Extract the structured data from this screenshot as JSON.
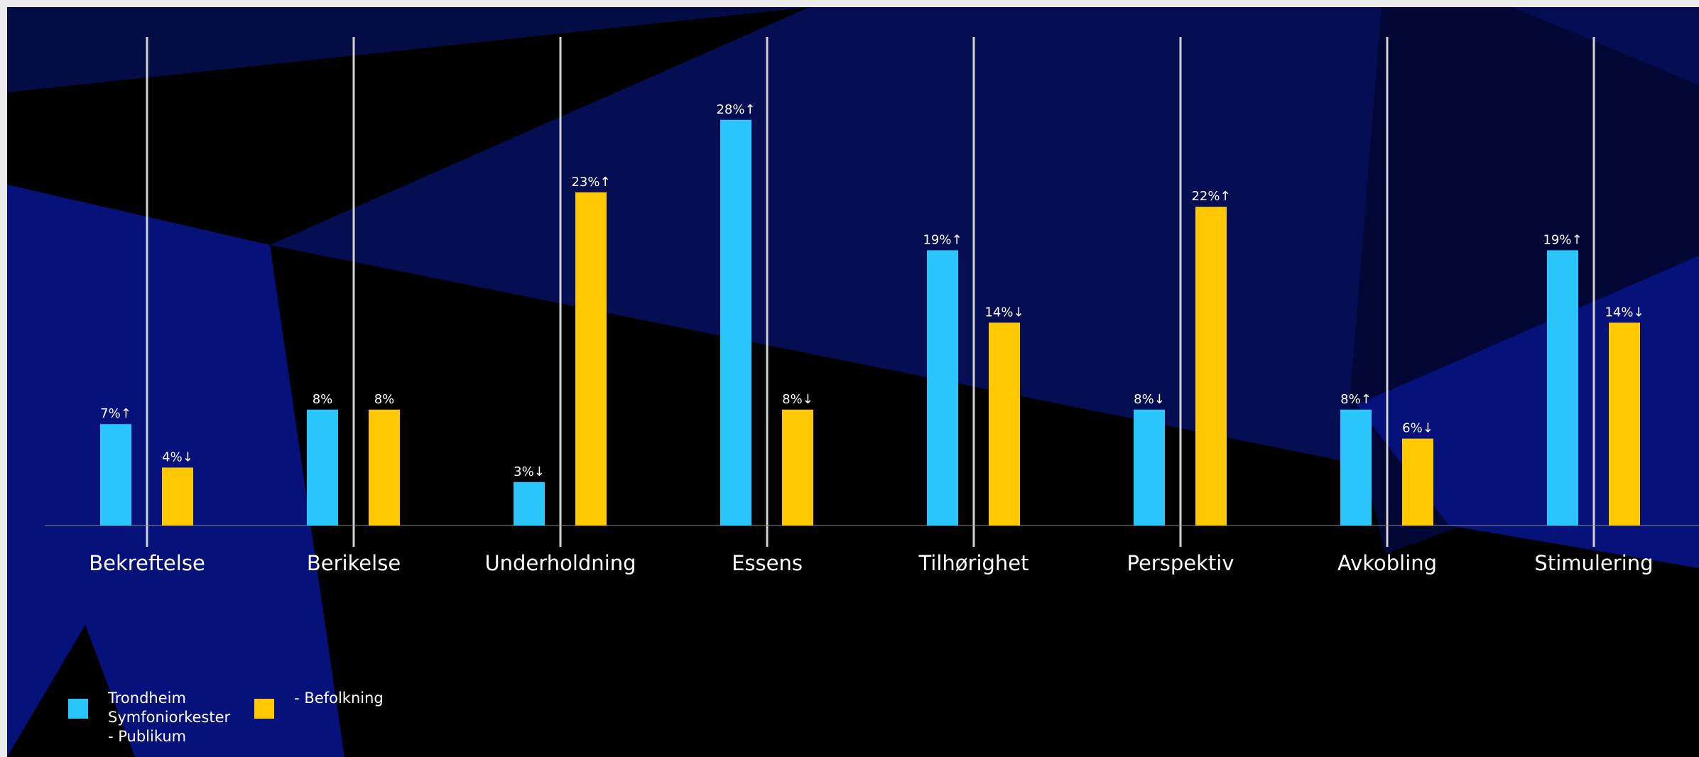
{
  "colors": {
    "series_a": "#29c5fb",
    "series_b": "#ffc800",
    "background": "#000000",
    "shape_dark": "#020a3a",
    "shape_mid": "#06105c",
    "shape_bright": "#08137a",
    "separator": "#d2d2d2",
    "baseline": "#8a8a8a"
  },
  "legend": [
    {
      "label": "Trondheim\nSymfoniorkester\n- Publikum",
      "color": "#29c5fb"
    },
    {
      "label": "- Befolkning",
      "color": "#ffc800"
    }
  ],
  "chart_data": {
    "type": "bar",
    "title": "",
    "xlabel": "",
    "ylabel": "",
    "ylim": [
      0,
      30
    ],
    "grid": false,
    "legend_position": "bottom-left",
    "categories": [
      "Bekreftelse",
      "Berikelse",
      "Underholdning",
      "Essens",
      "Tilhørighet",
      "Perspektiv",
      "Avkobling",
      "Stimulering"
    ],
    "series": [
      {
        "name": "Trondheim Symfoniorkester - Publikum",
        "color": "#29c5fb",
        "values": [
          7,
          8,
          3,
          28,
          19,
          8,
          8,
          19
        ],
        "labels": [
          "7%↑",
          "8%",
          "3%↓",
          "28%↑",
          "19%↑",
          "8%↓",
          "8%↑",
          "19%↑"
        ]
      },
      {
        "name": "- Befolkning",
        "color": "#ffc800",
        "values": [
          4,
          8,
          23,
          8,
          14,
          22,
          6,
          14
        ],
        "labels": [
          "4%↓",
          "8%",
          "23%↑",
          "8%↓",
          "14%↓",
          "22%↑",
          "6%↓",
          "14%↓"
        ]
      }
    ]
  }
}
